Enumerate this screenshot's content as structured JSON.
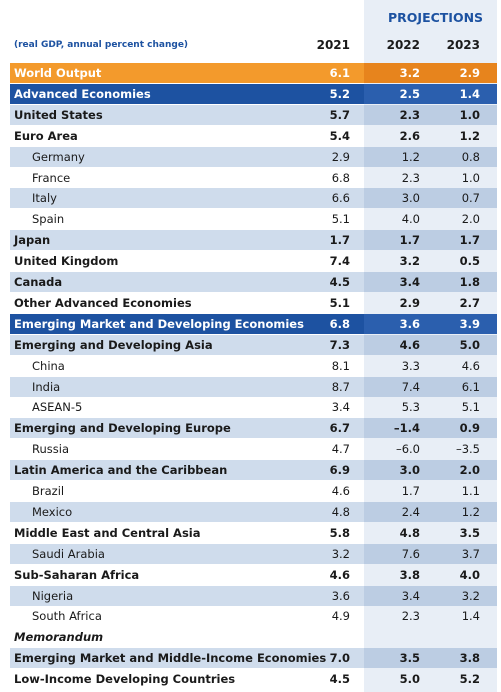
{
  "header": {
    "projections": "PROJECTIONS",
    "subtitle": "(real GDP, annual percent change)",
    "years": [
      "2021",
      "2022",
      "2023"
    ]
  },
  "table": {
    "rows": [
      [
        "World Output",
        "6.1",
        "3.2",
        "2.9"
      ],
      [
        "Advanced Economies",
        "5.2",
        "2.5",
        "1.4"
      ],
      [
        "United States",
        "5.7",
        "2.3",
        "1.0"
      ],
      [
        "Euro Area",
        "5.4",
        "2.6",
        "1.2"
      ],
      [
        "Germany",
        "2.9",
        "1.2",
        "0.8"
      ],
      [
        "France",
        "6.8",
        "2.3",
        "1.0"
      ],
      [
        "Italy",
        "6.6",
        "3.0",
        "0.7"
      ],
      [
        "Spain",
        "5.1",
        "4.0",
        "2.0"
      ],
      [
        "Japan",
        "1.7",
        "1.7",
        "1.7"
      ],
      [
        "United Kingdom",
        "7.4",
        "3.2",
        "0.5"
      ],
      [
        "Canada",
        "4.5",
        "3.4",
        "1.8"
      ],
      [
        "Other Advanced Economies",
        "5.1",
        "2.9",
        "2.7"
      ],
      [
        "Emerging Market and Developing Economies",
        "6.8",
        "3.6",
        "3.9"
      ],
      [
        "Emerging and Developing Asia",
        "7.3",
        "4.6",
        "5.0"
      ],
      [
        "China",
        "8.1",
        "3.3",
        "4.6"
      ],
      [
        "India",
        "8.7",
        "7.4",
        "6.1"
      ],
      [
        "ASEAN-5",
        "3.4",
        "5.3",
        "5.1"
      ],
      [
        "Emerging and Developing Europe",
        "6.7",
        "–1.4",
        "0.9"
      ],
      [
        "Russia",
        "4.7",
        "–6.0",
        "–3.5"
      ],
      [
        "Latin America and the Caribbean",
        "6.9",
        "3.0",
        "2.0"
      ],
      [
        "Brazil",
        "4.6",
        "1.7",
        "1.1"
      ],
      [
        "Mexico",
        "4.8",
        "2.4",
        "1.2"
      ],
      [
        "Middle East and Central Asia",
        "5.8",
        "4.8",
        "3.5"
      ],
      [
        "Saudi Arabia",
        "3.2",
        "7.6",
        "3.7"
      ],
      [
        "Sub-Saharan Africa",
        "4.6",
        "3.8",
        "4.0"
      ],
      [
        "Nigeria",
        "3.6",
        "3.4",
        "3.2"
      ],
      [
        "South Africa",
        "4.9",
        "2.3",
        "1.4"
      ],
      [
        "Memorandum"
      ],
      [
        "Emerging Market and Middle-Income Economies",
        "7.0",
        "3.5",
        "3.8"
      ],
      [
        "Low-Income Developing Countries",
        "4.5",
        "5.0",
        "5.2"
      ]
    ]
  }
}
